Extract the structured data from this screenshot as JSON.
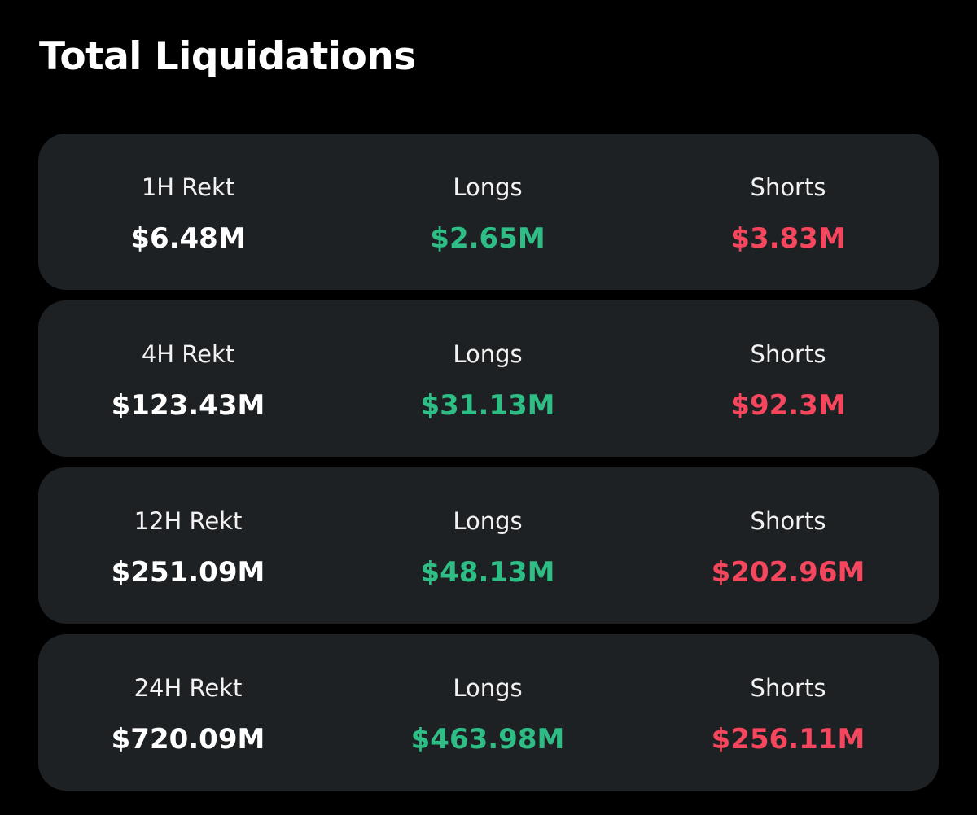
{
  "page": {
    "title": "Total Liquidations"
  },
  "colors": {
    "background": "#000000",
    "card": "#1e2124",
    "longs": "#2ebd85",
    "shorts": "#f6465d"
  },
  "rows": [
    {
      "period_label": "1H Rekt",
      "total": "$6.48M",
      "longs_label": "Longs",
      "longs": "$2.65M",
      "shorts_label": "Shorts",
      "shorts": "$3.83M"
    },
    {
      "period_label": "4H Rekt",
      "total": "$123.43M",
      "longs_label": "Longs",
      "longs": "$31.13M",
      "shorts_label": "Shorts",
      "shorts": "$92.3M"
    },
    {
      "period_label": "12H Rekt",
      "total": "$251.09M",
      "longs_label": "Longs",
      "longs": "$48.13M",
      "shorts_label": "Shorts",
      "shorts": "$202.96M"
    },
    {
      "period_label": "24H Rekt",
      "total": "$720.09M",
      "longs_label": "Longs",
      "longs": "$463.98M",
      "shorts_label": "Shorts",
      "shorts": "$256.11M"
    }
  ]
}
